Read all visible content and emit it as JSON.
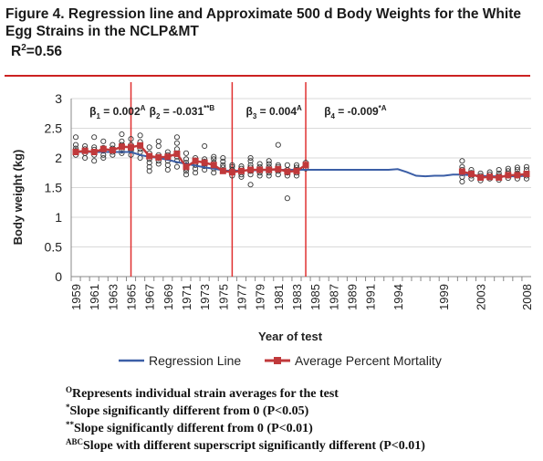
{
  "figure": {
    "title": "Figure 4.  Regression line and Approximate 500 d Body Weights for the White Egg Strains in the NCLP&MT",
    "r2_base": "R",
    "r2_sup": "2",
    "r2_value": "=0.56"
  },
  "footnotes": [
    {
      "sup": "O",
      "text": "Represents individual strain averages for the test"
    },
    {
      "sup": "*",
      "text": "Slope significantly different from 0 (P<0.05)"
    },
    {
      "sup": "**",
      "text": "Slope significantly different from 0 (P<0.01)"
    },
    {
      "sup": "ABC",
      "text": "Slope with different superscript significantly different (P<0.01)"
    }
  ],
  "colors": {
    "regression": "#3b5ea6",
    "average": "#c0393b",
    "breakpoint": "#e03030",
    "title_rule": "#cc2222"
  },
  "chart_data": {
    "type": "line",
    "xlabel": "Year of test",
    "ylabel": "Body weight (kg)",
    "ylim": [
      0,
      3
    ],
    "yticks": [
      0,
      0.5,
      1,
      1.5,
      2,
      2.5,
      3
    ],
    "categories": [
      "1959",
      "1960",
      "1961",
      "1962",
      "1963",
      "1964",
      "1965",
      "1966",
      "1967",
      "1968",
      "1969",
      "1970",
      "1971",
      "1972",
      "1973",
      "1974",
      "1975",
      "1976",
      "1977",
      "1978",
      "1979",
      "1980",
      "1981",
      "1982",
      "1983",
      "1984",
      "1985",
      "1986",
      "1987",
      "1988",
      "1989",
      "1990",
      "1991",
      "1992",
      "1993",
      "1994",
      "1995",
      "1996",
      "1997",
      "1998",
      "1999",
      "2000",
      "2001",
      "2002",
      "2003",
      "2004",
      "2005",
      "2006",
      "2007",
      "2008"
    ],
    "xticklabels": [
      "1959",
      "1961",
      "1963",
      "1965",
      "1967",
      "1969",
      "1971",
      "1973",
      "1975",
      "1977",
      "1979",
      "1981",
      "1983",
      "1985",
      "1987",
      "1989",
      "1991",
      "1994",
      "1999",
      "2003",
      "2008"
    ],
    "series": [
      {
        "name": "Regression Line",
        "style": "line",
        "values": [
          2.1,
          2.1,
          2.1,
          2.1,
          2.1,
          2.1,
          2.1,
          2.05,
          2.02,
          2.0,
          1.97,
          1.93,
          1.9,
          1.87,
          1.84,
          1.82,
          1.79,
          1.78,
          1.79,
          1.79,
          1.79,
          1.8,
          1.8,
          1.8,
          1.8,
          1.8,
          1.8,
          1.8,
          1.8,
          1.8,
          1.8,
          1.8,
          1.8,
          1.8,
          1.8,
          1.81,
          1.76,
          1.7,
          1.69,
          1.7,
          1.7,
          1.72,
          1.72,
          1.71,
          1.7,
          1.69,
          1.69,
          1.69,
          1.69,
          1.7
        ]
      },
      {
        "name": "Average Percent Mortality",
        "style": "line-marker",
        "values": [
          2.1,
          2.12,
          2.1,
          2.15,
          2.13,
          2.19,
          2.18,
          2.21,
          2.03,
          2.01,
          2.02,
          2.07,
          1.85,
          1.95,
          1.92,
          1.88,
          1.78,
          1.76,
          1.78,
          1.8,
          1.8,
          1.8,
          1.81,
          1.77,
          1.78,
          1.88,
          null,
          null,
          null,
          null,
          null,
          null,
          null,
          null,
          null,
          null,
          null,
          null,
          null,
          null,
          null,
          null,
          1.77,
          1.73,
          1.67,
          1.68,
          1.67,
          1.71,
          1.71,
          1.73
        ]
      }
    ],
    "segment_breaks": [
      "1965",
      "1976",
      "1984"
    ],
    "segment_labels": [
      {
        "base": "β",
        "sub": "1",
        "eq": " = 0.002",
        "sup": "A",
        "x": "1960.5"
      },
      {
        "base": "β",
        "sub": "2",
        "eq": " = -0.031",
        "sup": "**B",
        "x": "1967"
      },
      {
        "base": "β",
        "sub": "3",
        "eq": " = 0.004",
        "sup": "A",
        "x": "1977.5"
      },
      {
        "base": "β",
        "sub": "4",
        "eq": " = -0.009",
        "sup": "*A",
        "x": "1986"
      }
    ],
    "scatter": [
      [
        "1959",
        [
          2.05,
          2.1,
          2.12,
          2.16,
          2.22,
          2.35
        ]
      ],
      [
        "1960",
        [
          2.0,
          2.08,
          2.12,
          2.15,
          2.2
        ]
      ],
      [
        "1961",
        [
          1.95,
          2.05,
          2.1,
          2.14,
          2.18,
          2.35
        ]
      ],
      [
        "1962",
        [
          2.0,
          2.05,
          2.12,
          2.17,
          2.28
        ]
      ],
      [
        "1963",
        [
          2.05,
          2.1,
          2.13,
          2.16,
          2.22
        ]
      ],
      [
        "1964",
        [
          2.08,
          2.12,
          2.18,
          2.22,
          2.28,
          2.4
        ]
      ],
      [
        "1965",
        [
          2.05,
          2.12,
          2.15,
          2.18,
          2.22,
          2.32
        ]
      ],
      [
        "1966",
        [
          2.1,
          2.15,
          2.2,
          2.27,
          2.38,
          2.0
        ]
      ],
      [
        "1967",
        [
          1.78,
          1.85,
          1.92,
          1.98,
          2.03,
          2.08,
          2.18
        ]
      ],
      [
        "1968",
        [
          1.9,
          1.95,
          2.0,
          2.05,
          2.2,
          2.28
        ]
      ],
      [
        "1969",
        [
          1.8,
          1.88,
          1.95,
          2.0,
          2.05,
          2.1
        ]
      ],
      [
        "1970",
        [
          1.85,
          1.95,
          2.02,
          2.08,
          2.15,
          2.25,
          2.35
        ]
      ],
      [
        "1971",
        [
          1.72,
          1.78,
          1.82,
          1.88,
          1.92,
          1.98,
          2.08
        ]
      ],
      [
        "1972",
        [
          1.75,
          1.82,
          1.88,
          1.92,
          1.96,
          2.0
        ]
      ],
      [
        "1973",
        [
          1.8,
          1.86,
          1.9,
          1.94,
          1.98,
          2.2
        ]
      ],
      [
        "1974",
        [
          1.75,
          1.82,
          1.88,
          1.92,
          1.98,
          2.02
        ]
      ],
      [
        "1975",
        [
          1.78,
          1.84,
          1.88,
          1.94,
          2.0
        ]
      ],
      [
        "1976",
        [
          1.7,
          1.75,
          1.8,
          1.85,
          1.88
        ]
      ],
      [
        "1977",
        [
          1.68,
          1.72,
          1.78,
          1.82,
          1.86
        ]
      ],
      [
        "1978",
        [
          1.55,
          1.72,
          1.78,
          1.84,
          1.88,
          1.95,
          2.0
        ]
      ],
      [
        "1979",
        [
          1.7,
          1.75,
          1.8,
          1.85,
          1.9
        ]
      ],
      [
        "1980",
        [
          1.7,
          1.75,
          1.8,
          1.85,
          1.9,
          1.95
        ]
      ],
      [
        "1981",
        [
          1.72,
          1.78,
          1.82,
          1.85,
          1.88,
          2.22
        ]
      ],
      [
        "1982",
        [
          1.32,
          1.7,
          1.75,
          1.8,
          1.88
        ]
      ],
      [
        "1983",
        [
          1.7,
          1.75,
          1.8,
          1.84,
          1.88
        ]
      ],
      [
        "1984",
        [
          1.82,
          1.88,
          1.92
        ]
      ],
      [
        "2001",
        [
          1.6,
          1.68,
          1.74,
          1.8,
          1.85,
          1.95
        ]
      ],
      [
        "2002",
        [
          1.65,
          1.7,
          1.75,
          1.8
        ]
      ],
      [
        "2003",
        [
          1.62,
          1.66,
          1.7,
          1.74
        ]
      ],
      [
        "2004",
        [
          1.65,
          1.68,
          1.72,
          1.76
        ]
      ],
      [
        "2005",
        [
          1.63,
          1.67,
          1.7,
          1.74,
          1.8
        ]
      ],
      [
        "2006",
        [
          1.66,
          1.7,
          1.74,
          1.78,
          1.82
        ]
      ],
      [
        "2007",
        [
          1.65,
          1.7,
          1.74,
          1.8,
          1.84
        ]
      ],
      [
        "2008",
        [
          1.65,
          1.7,
          1.74,
          1.8,
          1.85
        ]
      ]
    ]
  }
}
